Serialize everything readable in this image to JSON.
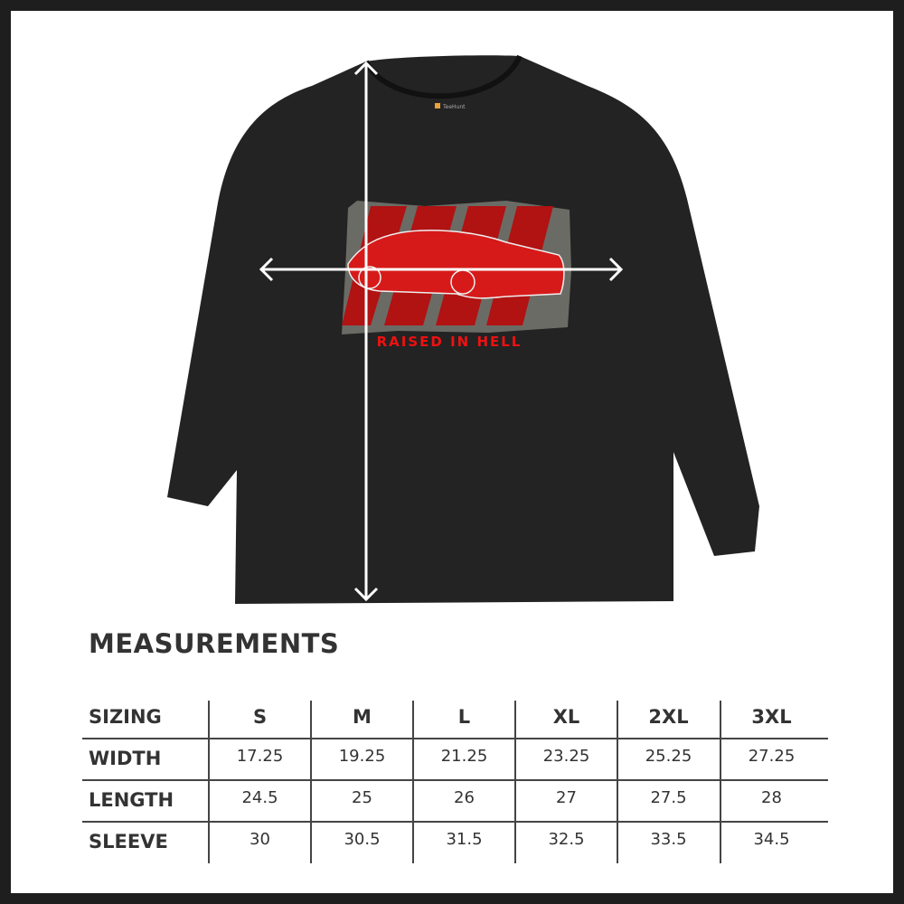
{
  "product": {
    "tag_brand": "TeeHunt",
    "print_text": "RAISED IN HELL",
    "shirt_color": "#232323",
    "print_color": "#d31414"
  },
  "measurements": {
    "title": "MEASUREMENTS",
    "header": [
      "SIZING",
      "S",
      "M",
      "L",
      "XL",
      "2XL",
      "3XL"
    ],
    "rows": [
      {
        "label": "WIDTH",
        "values": [
          "17.25",
          "19.25",
          "21.25",
          "23.25",
          "25.25",
          "27.25"
        ]
      },
      {
        "label": "LENGTH",
        "values": [
          "24.5",
          "25",
          "26",
          "27",
          "27.5",
          "28"
        ]
      },
      {
        "label": "SLEEVE",
        "values": [
          "30",
          "30.5",
          "31.5",
          "32.5",
          "33.5",
          "34.5"
        ]
      }
    ]
  }
}
